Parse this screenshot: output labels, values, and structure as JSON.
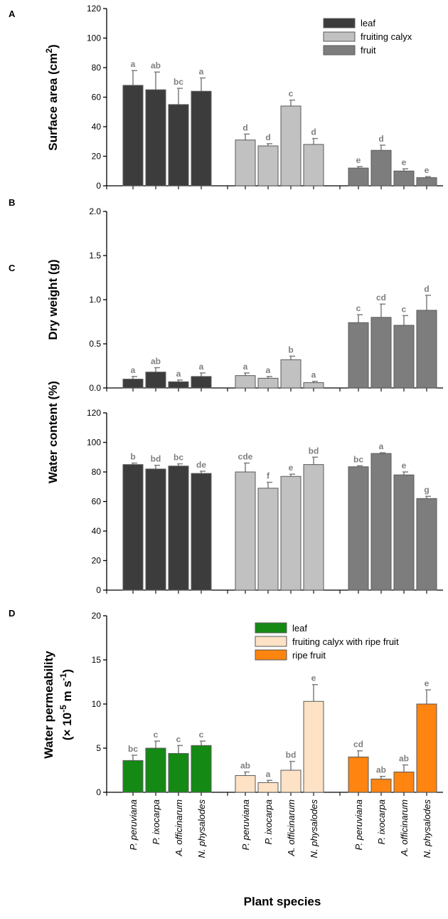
{
  "x_axis_title": "Plant species",
  "species": [
    "P. peruviana",
    "P. ixocarpa",
    "A. officinarum",
    "N. physalodes"
  ],
  "chart_data": [
    {
      "type": "bar",
      "panel": "A",
      "ylabel": "Surface area (cm²)",
      "ylabel_parts": {
        "before": "Surface area (cm",
        "sup": "2",
        "after": ")"
      },
      "ylim": [
        0,
        120
      ],
      "yticks": [
        0,
        20,
        40,
        60,
        80,
        100,
        120
      ],
      "legend_position": "top-right",
      "series": [
        {
          "name": "leaf",
          "color": "#3c3c3c",
          "values": [
            68,
            65,
            55,
            64
          ],
          "errors": [
            10,
            12,
            11,
            9
          ],
          "labels": [
            "a",
            "ab",
            "bc",
            "a"
          ]
        },
        {
          "name": "fruiting calyx",
          "color": "#c1c1c1",
          "values": [
            31,
            27,
            54,
            28
          ],
          "errors": [
            4,
            1.5,
            4,
            4
          ],
          "labels": [
            "d",
            "d",
            "c",
            "d"
          ]
        },
        {
          "name": "fruit",
          "color": "#7d7d7d",
          "values": [
            12,
            24,
            10,
            5.5
          ],
          "errors": [
            1,
            3.5,
            1.5,
            0.7
          ],
          "labels": [
            "e",
            "d",
            "e",
            "e"
          ]
        }
      ]
    },
    {
      "type": "bar",
      "panel": "B",
      "ylabel": "Dry weight (g)",
      "ylim": [
        0,
        2.0
      ],
      "yticks": [
        "0.0",
        "0.5",
        "1.0",
        "1.5",
        "2.0"
      ],
      "series": [
        {
          "name": "leaf",
          "color": "#3c3c3c",
          "values": [
            0.1,
            0.18,
            0.07,
            0.13
          ],
          "errors": [
            0.03,
            0.05,
            0.02,
            0.04
          ],
          "labels": [
            "a",
            "ab",
            "a",
            "a"
          ]
        },
        {
          "name": "fruiting calyx",
          "color": "#c1c1c1",
          "values": [
            0.14,
            0.11,
            0.32,
            0.06
          ],
          "errors": [
            0.03,
            0.02,
            0.04,
            0.015
          ],
          "labels": [
            "a",
            "a",
            "b",
            "a"
          ]
        },
        {
          "name": "fruit",
          "color": "#7d7d7d",
          "values": [
            0.74,
            0.8,
            0.71,
            0.88
          ],
          "errors": [
            0.09,
            0.15,
            0.11,
            0.17
          ],
          "labels": [
            "c",
            "cd",
            "c",
            "d"
          ]
        }
      ]
    },
    {
      "type": "bar",
      "panel": "C",
      "ylabel": "Water content (%)",
      "ylim": [
        0,
        120
      ],
      "yticks": [
        0,
        20,
        40,
        60,
        80,
        100,
        120
      ],
      "series": [
        {
          "name": "leaf",
          "color": "#3c3c3c",
          "values": [
            85,
            82,
            84,
            79
          ],
          "errors": [
            1,
            2.5,
            1.5,
            1.5
          ],
          "labels": [
            "b",
            "bd",
            "bc",
            "de"
          ]
        },
        {
          "name": "fruiting calyx",
          "color": "#c1c1c1",
          "values": [
            80,
            69,
            77,
            85
          ],
          "errors": [
            6,
            4,
            1.5,
            5
          ],
          "labels": [
            "cde",
            "f",
            "e",
            "bd"
          ]
        },
        {
          "name": "fruit",
          "color": "#7d7d7d",
          "values": [
            83.5,
            92.5,
            78,
            62
          ],
          "errors": [
            0.7,
            0.5,
            2,
            1.5
          ],
          "labels": [
            "bc",
            "a",
            "e",
            "g"
          ]
        }
      ]
    },
    {
      "type": "bar",
      "panel": "D",
      "ylabel_line1": "Water permeability",
      "ylabel_line2": {
        "a": "(× 10",
        "s1": "-5",
        "b": " m s",
        "s2": "-1",
        "c": ")"
      },
      "ylim": [
        0,
        20
      ],
      "yticks": [
        0,
        5,
        10,
        15,
        20
      ],
      "legend_position": "top-right",
      "series": [
        {
          "name": "leaf",
          "color": "#148a14",
          "values": [
            3.6,
            5.0,
            4.4,
            5.3
          ],
          "errors": [
            0.6,
            0.8,
            0.9,
            0.5
          ],
          "labels": [
            "bc",
            "c",
            "c",
            "c"
          ]
        },
        {
          "name": "fruiting calyx with ripe fruit",
          "color": "#fde2c5",
          "values": [
            1.9,
            1.1,
            2.5,
            10.3
          ],
          "errors": [
            0.4,
            0.25,
            1.0,
            1.9
          ],
          "labels": [
            "ab",
            "a",
            "bd",
            "e"
          ]
        },
        {
          "name": "ripe fruit",
          "color": "#ff8410",
          "values": [
            4.0,
            1.5,
            2.3,
            10.0
          ],
          "errors": [
            0.7,
            0.3,
            0.8,
            1.6
          ],
          "labels": [
            "cd",
            "ab",
            "ab",
            "e"
          ]
        }
      ]
    }
  ]
}
